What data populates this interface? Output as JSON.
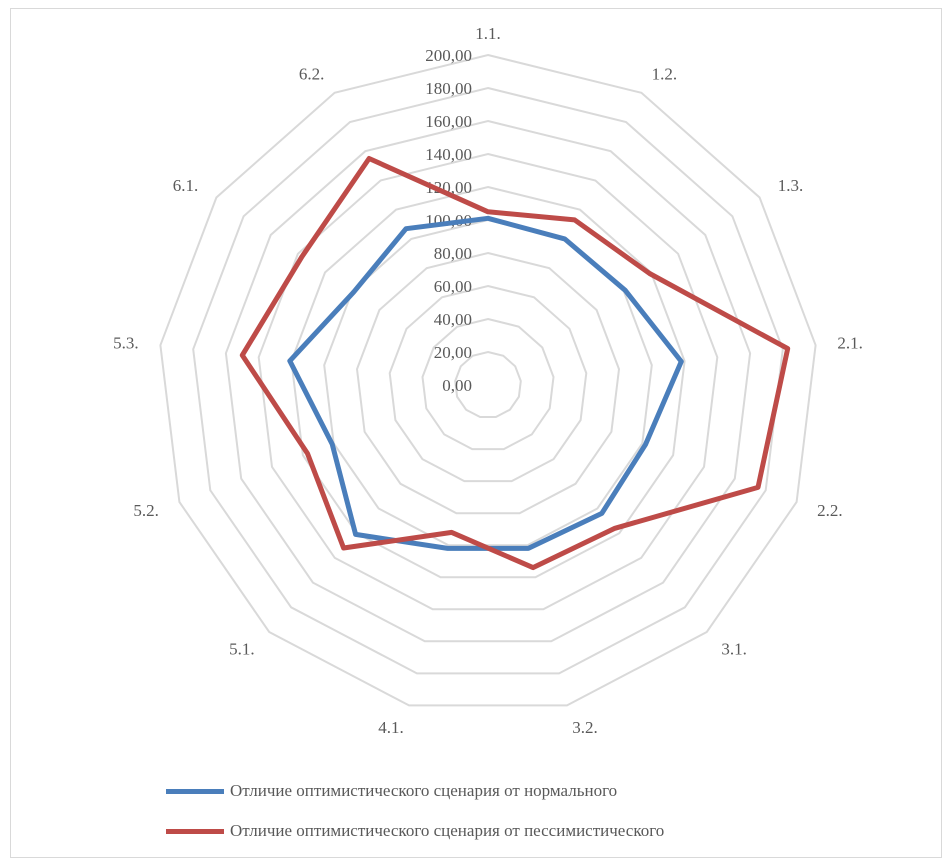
{
  "chart_data": {
    "type": "radar",
    "categories": [
      "1.1.",
      "1.2.",
      "1.3.",
      "2.1.",
      "2.2.",
      "3.1.",
      "3.2.",
      "4.1.",
      "5.1.",
      "5.2.",
      "5.3.",
      "6.1.",
      "6.2."
    ],
    "tick_labels": [
      "0,00",
      "20,00",
      "40,00",
      "60,00",
      "80,00",
      "100,00",
      "120,00",
      "140,00",
      "160,00",
      "180,00",
      "200,00"
    ],
    "rlim": [
      0,
      200
    ],
    "grid": true,
    "legend_position": "bottom",
    "series": [
      {
        "name": "Отличие оптимистического сценария от нормального",
        "color": "#4a7ebb",
        "values": [
          101,
          100,
          101,
          118,
          102,
          104,
          102,
          102,
          121,
          101,
          121,
          99,
          107
        ]
      },
      {
        "name": "Отличие оптимистического сценария от пессимистического",
        "color": "#be4b48",
        "values": [
          105,
          113,
          119,
          183,
          175,
          116,
          114,
          92,
          132,
          117,
          150,
          137,
          155
        ]
      }
    ]
  }
}
